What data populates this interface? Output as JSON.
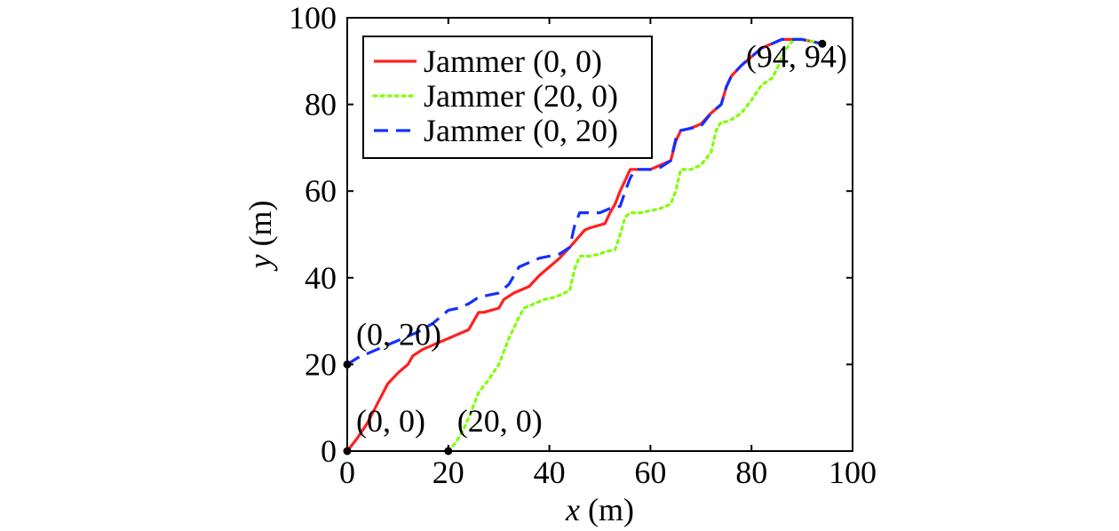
{
  "chart_data": {
    "type": "line",
    "title": "",
    "xlabel": {
      "var": "x",
      "unit": " (m)"
    },
    "ylabel": {
      "var": "y",
      "unit": " (m)"
    },
    "xlim": [
      0,
      100
    ],
    "ylim": [
      0,
      100
    ],
    "xticks": [
      "0",
      "20",
      "40",
      "60",
      "80",
      "100"
    ],
    "yticks": [
      "0",
      "20",
      "40",
      "60",
      "80",
      "100"
    ],
    "grid": false,
    "legend_position": "top-left",
    "series": [
      {
        "name": "Jammer (0, 0)",
        "color": "#ff2020",
        "style": "solid",
        "x": [
          0,
          2,
          4,
          6,
          8,
          10,
          12,
          13,
          15,
          18,
          21,
          24,
          26,
          27,
          30,
          31,
          33,
          36,
          38,
          40,
          42,
          44,
          45.5,
          47,
          48,
          51,
          52,
          53,
          54,
          55,
          56,
          57,
          58,
          60,
          62,
          64,
          65,
          66,
          68,
          70,
          72,
          74,
          75,
          76,
          78,
          80,
          82,
          84,
          86,
          88,
          90,
          92,
          94
        ],
        "y": [
          0,
          3,
          6.5,
          11,
          15.5,
          18,
          20,
          22,
          23.5,
          25,
          26.5,
          28,
          32,
          32,
          33,
          35,
          36.5,
          38,
          40.5,
          42.5,
          44.5,
          47,
          49,
          51,
          51.5,
          52.5,
          55,
          57,
          60,
          62.5,
          65,
          65,
          65,
          65,
          66,
          67,
          71.5,
          74,
          74.5,
          75.5,
          78,
          80,
          84,
          86.5,
          89,
          91,
          93,
          94,
          95,
          95,
          95,
          94.5,
          94
        ]
      },
      {
        "name": "Jammer (20, 0)",
        "color": "#7fff00",
        "style": "dotted",
        "x": [
          20,
          21.5,
          23,
          24.5,
          26,
          28,
          30,
          32,
          34,
          35,
          37,
          39,
          41,
          44,
          45,
          46,
          48,
          50,
          51,
          53,
          54,
          55,
          56,
          58,
          60,
          62,
          64,
          65,
          66,
          67,
          68,
          70,
          72,
          73,
          74,
          75,
          76,
          78,
          80,
          82,
          84,
          85,
          86,
          87,
          88,
          89,
          90,
          92,
          94
        ],
        "y": [
          0,
          2,
          5,
          9,
          13.5,
          16.5,
          20,
          26,
          31,
          33,
          34,
          35,
          35.5,
          37,
          42,
          45,
          45,
          45.5,
          46,
          46.5,
          50,
          54,
          55,
          55,
          55.5,
          56,
          57,
          60,
          65,
          65,
          65,
          66,
          69,
          74,
          76,
          76,
          76.5,
          78,
          81,
          84.5,
          86,
          88,
          91,
          93,
          94.5,
          95,
          95,
          94.5,
          94
        ]
      },
      {
        "name": "Jammer (0, 20)",
        "color": "#1430ff",
        "style": "dashed",
        "x": [
          0,
          2,
          4,
          6,
          8,
          10,
          12,
          14,
          17,
          20,
          22,
          24,
          26,
          28,
          30,
          32,
          34,
          36,
          38,
          40,
          42,
          44,
          45,
          46,
          48,
          50,
          52,
          54,
          55,
          56,
          57,
          60,
          62,
          64,
          65,
          66,
          68,
          70,
          72,
          74,
          75,
          76,
          78,
          80,
          82,
          84,
          86,
          88,
          90,
          92,
          94
        ],
        "y": [
          20,
          21.5,
          22.5,
          23.5,
          24.5,
          25.5,
          26.5,
          27.5,
          29.5,
          32.5,
          33,
          34,
          35.5,
          36,
          36.5,
          38.5,
          42.5,
          43.5,
          44.5,
          45,
          45.5,
          47,
          52,
          55,
          55,
          55,
          56,
          56.5,
          60,
          63,
          65,
          65,
          65.5,
          67,
          72,
          74,
          74.5,
          75,
          78,
          80,
          84,
          86.5,
          89,
          91,
          93,
          94,
          95,
          95,
          95,
          94.5,
          94
        ]
      }
    ],
    "annotations": [
      {
        "text": "(0, 20)",
        "x": 0,
        "y": 20,
        "placement": "upper-right"
      },
      {
        "text": "(0, 0)",
        "x": 0,
        "y": 0,
        "placement": "upper-right"
      },
      {
        "text": "(20, 0)",
        "x": 20,
        "y": 0,
        "placement": "upper-right"
      },
      {
        "text": "(94, 94)",
        "x": 94,
        "y": 94,
        "placement": "lower-left"
      }
    ],
    "markers": [
      {
        "x": 0,
        "y": 20
      },
      {
        "x": 0,
        "y": 0
      },
      {
        "x": 20,
        "y": 0
      },
      {
        "x": 94,
        "y": 94
      }
    ]
  }
}
